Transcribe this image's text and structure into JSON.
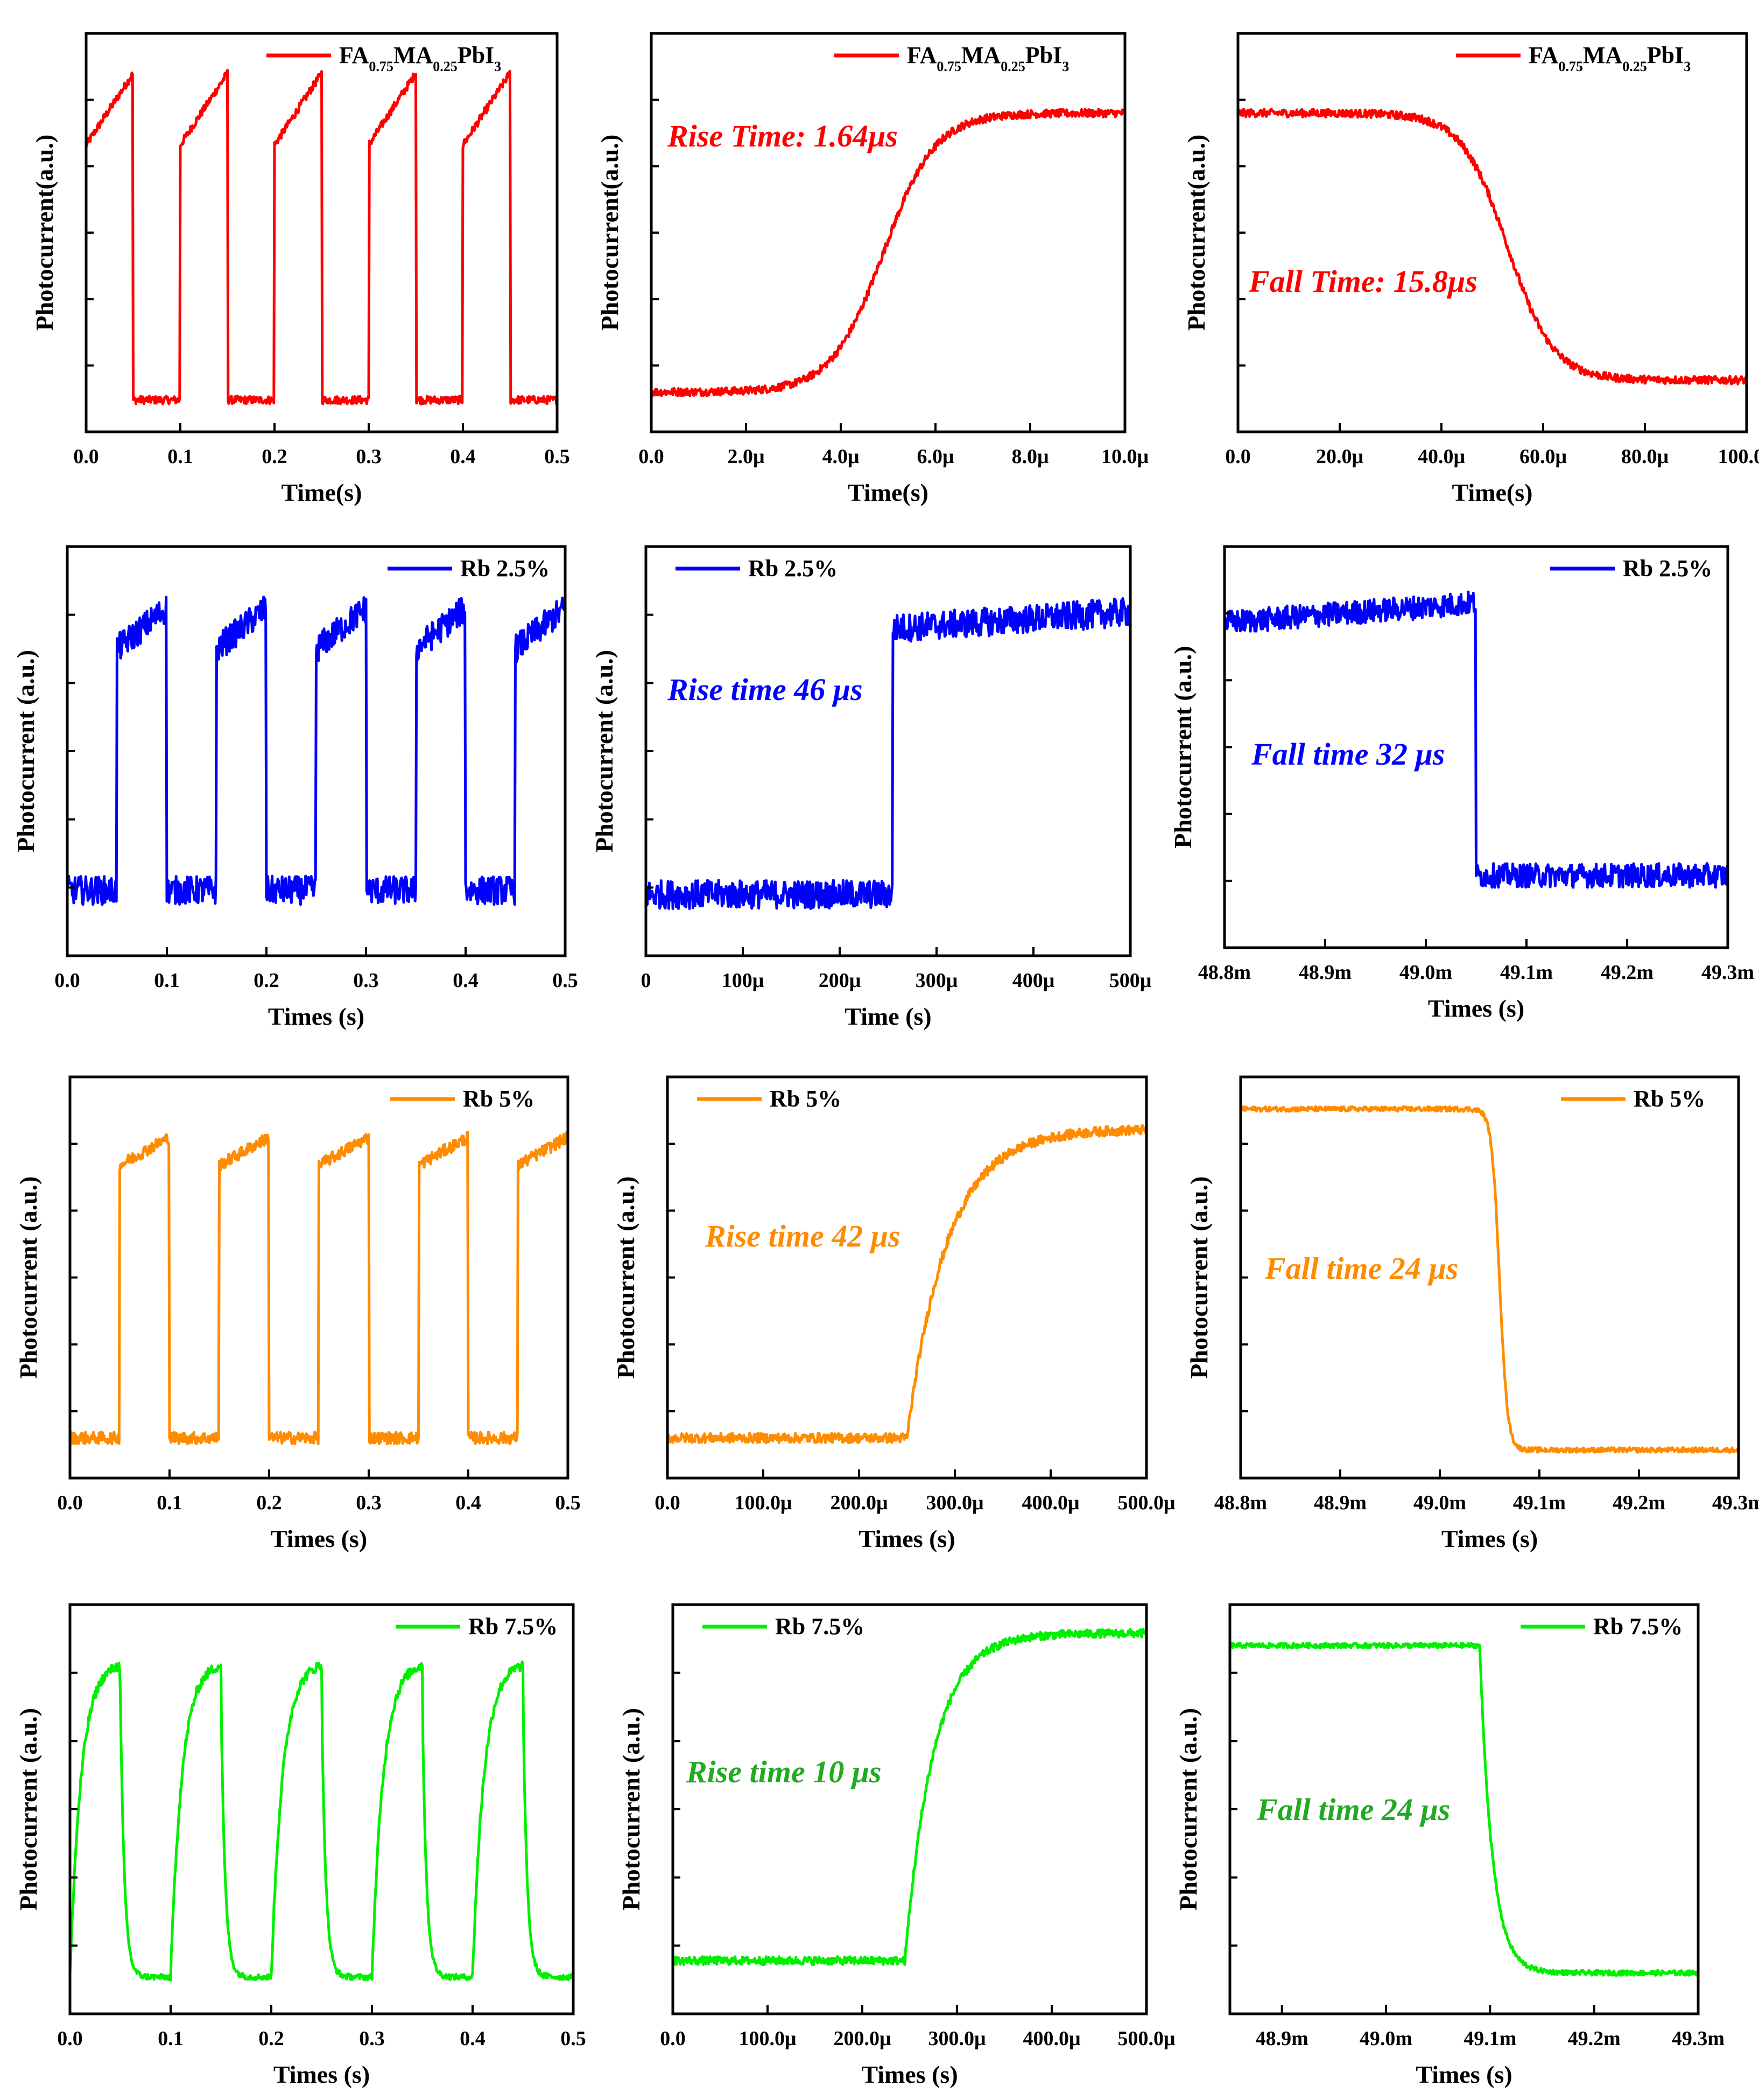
{
  "figure": {
    "description_free": true
  },
  "chart_data": [
    {
      "id": "p1",
      "type": "line",
      "style": "square",
      "color": "#ff0000",
      "legend": "FA0.75MA0.25PbI3",
      "legend_parts": [
        "FA",
        "0.75",
        "MA",
        "0.25",
        "PbI",
        "3"
      ],
      "xlabel": "Time(s)",
      "ylabel": "Photocurrent(a.u.)",
      "xlim": [
        0,
        0.5
      ],
      "ylim": [
        0,
        1
      ],
      "xticks": [
        "0.0",
        "0.1",
        "0.2",
        "0.3",
        "0.4",
        "0.5"
      ],
      "pulse_period": 0.1,
      "on_start": 0.0,
      "on_duration": 0.05,
      "first_on": 0.0,
      "low": 0.08,
      "high": [
        0.72,
        0.9
      ],
      "annotation": ""
    },
    {
      "id": "p2",
      "type": "line",
      "style": "sigmoid",
      "color": "#ff0000",
      "legend": "FA0.75MA0.25PbI3",
      "legend_parts": [
        "FA",
        "0.75",
        "MA",
        "0.25",
        "PbI",
        "3"
      ],
      "xlabel": "Time(s)",
      "ylabel": "Photocurrent(a.u.)",
      "xlim": [
        0,
        10
      ],
      "ylim": [
        0,
        1
      ],
      "xticks": [
        "0.0",
        "2.0μ",
        "4.0μ",
        "6.0μ",
        "8.0μ",
        "10.0μ"
      ],
      "transition_center": 4.9,
      "transition_width": 0.55,
      "low": 0.1,
      "high": 0.8,
      "annotation": "Rise Time: 1.64μs",
      "annotation_color": "#ff0000"
    },
    {
      "id": "p3",
      "type": "line",
      "style": "sigmoid",
      "color": "#ff0000",
      "legend": "FA0.75MA0.25PbI3",
      "legend_parts": [
        "FA",
        "0.75",
        "MA",
        "0.25",
        "PbI",
        "3"
      ],
      "xlabel": "Time(s)",
      "ylabel": "Photocurrent(a.u.)",
      "xlim": [
        0,
        100
      ],
      "ylim": [
        0,
        1
      ],
      "xticks": [
        "0.0",
        "20.0μ",
        "40.0μ",
        "60.0μ",
        "80.0μ",
        "100.0μ"
      ],
      "transition_center": 53,
      "transition_width": 4.5,
      "low": 0.13,
      "high": 0.8,
      "falling": true,
      "annotation": "Fall Time: 15.8μs",
      "annotation_color": "#ff0000"
    },
    {
      "id": "p4",
      "type": "line",
      "style": "square",
      "color": "#0000ff",
      "legend": "Rb 2.5%",
      "xlabel": "Times (s)",
      "ylabel": "Photocurrent (a.u.)",
      "xlim": [
        0,
        0.5
      ],
      "ylim": [
        0,
        1
      ],
      "xticks": [
        "0.0",
        "0.1",
        "0.2",
        "0.3",
        "0.4",
        "0.5"
      ],
      "pulse_period": 0.1,
      "on_start": 0.05,
      "on_duration": 0.05,
      "first_on": 0.05,
      "low": 0.16,
      "high": [
        0.75,
        0.85
      ],
      "noise": 0.035,
      "annotation": ""
    },
    {
      "id": "p5",
      "type": "line",
      "style": "step",
      "color": "#0000ff",
      "legend": "Rb 2.5%",
      "xlabel": "Time (s)",
      "ylabel": "Photocurrent (a.u.)",
      "xlim": [
        0,
        500
      ],
      "ylim": [
        0,
        1
      ],
      "xticks": [
        "0",
        "100μ",
        "200μ",
        "300μ",
        "400μ",
        "500μ"
      ],
      "transition_center": 255,
      "low": 0.15,
      "high": 0.8,
      "noise": 0.035,
      "annotation": "Rise time 46 μs",
      "annotation_color": "#0000ff"
    },
    {
      "id": "p6",
      "type": "line",
      "style": "step",
      "color": "#0000ff",
      "legend": "Rb 2.5%",
      "xlabel": "Times (s)",
      "ylabel": "Photocurrent (a.u.)",
      "xlim": [
        48.8,
        49.3
      ],
      "ylim": [
        0,
        1
      ],
      "xticks": [
        "48.8m",
        "48.9m",
        "49.0m",
        "49.1m",
        "49.2m",
        "49.3m"
      ],
      "transition_center": 49.05,
      "low": 0.18,
      "high": 0.85,
      "falling": true,
      "noise": 0.03,
      "annotation": "Fall time 32 μs",
      "annotation_color": "#0000ff"
    },
    {
      "id": "p7",
      "type": "line",
      "style": "square",
      "color": "#ff8c00",
      "legend": "Rb 5%",
      "xlabel": "Times (s)",
      "ylabel": "Photocurrent (a.u.)",
      "xlim": [
        0,
        0.5
      ],
      "ylim": [
        0,
        1
      ],
      "xticks": [
        "0.0",
        "0.1",
        "0.2",
        "0.3",
        "0.4",
        "0.5"
      ],
      "pulse_period": 0.1,
      "on_start": 0.05,
      "on_duration": 0.05,
      "first_on": 0.05,
      "low": 0.1,
      "high": [
        0.78,
        0.85
      ],
      "noise": 0.015,
      "annotation": ""
    },
    {
      "id": "p8",
      "type": "line",
      "style": "expRise",
      "color": "#ff8c00",
      "legend": "Rb 5%",
      "xlabel": "Times (s)",
      "ylabel": "Photocurrent (a.u.)",
      "xlim": [
        0,
        500
      ],
      "ylim": [
        0,
        1
      ],
      "xticks": [
        "0.0",
        "100.0μ",
        "200.0μ",
        "300.0μ",
        "400.0μ",
        "500.0μ"
      ],
      "transition_center": 250,
      "tau": 42,
      "low": 0.1,
      "high": 0.87,
      "noise": 0.012,
      "annotation": "Rise time 42 μs",
      "annotation_color": "#ff8c00"
    },
    {
      "id": "p9",
      "type": "line",
      "style": "sigmoid",
      "color": "#ff8c00",
      "legend": "Rb 5%",
      "xlabel": "Times (s)",
      "ylabel": "Photocurrent (a.u.)",
      "xlim": [
        48.8,
        49.3
      ],
      "ylim": [
        0,
        1
      ],
      "xticks": [
        "48.8m",
        "48.9m",
        "49.0m",
        "49.1m",
        "49.2m",
        "49.3m"
      ],
      "transition_center": 49.06,
      "transition_width": 0.004,
      "low": 0.07,
      "high": 0.92,
      "falling": true,
      "noise": 0.006,
      "annotation": "Fall time 24 μs",
      "annotation_color": "#ff8c00"
    },
    {
      "id": "p10",
      "type": "line",
      "style": "squareExp",
      "color": "#00ee00",
      "legend": "Rb 7.5%",
      "xlabel": "Times (s)",
      "ylabel": "Photocurrent (a.u.)",
      "xlim": [
        0,
        0.5
      ],
      "ylim": [
        0,
        1
      ],
      "xticks": [
        "0.0",
        "0.1",
        "0.2",
        "0.3",
        "0.4",
        "0.5"
      ],
      "pulse_period": 0.1,
      "on_start": 0.0,
      "on_duration": 0.05,
      "first_on": 0.0,
      "low": 0.09,
      "high": [
        0.8,
        0.86
      ],
      "noise": 0.012,
      "annotation": ""
    },
    {
      "id": "p11",
      "type": "line",
      "style": "expRise",
      "color": "#00ee00",
      "legend": "Rb 7.5%",
      "xlabel": "Times (s)",
      "ylabel": "Photocurrent (a.u.)",
      "xlim": [
        0,
        500
      ],
      "ylim": [
        0,
        1
      ],
      "xticks": [
        "0.0",
        "100.0μ",
        "200.0μ",
        "300.0μ",
        "400.0μ",
        "500.0μ"
      ],
      "transition_center": 245,
      "tau": 30,
      "low": 0.13,
      "high": 0.93,
      "noise": 0.01,
      "annotation": "Rise time 10 μs",
      "annotation_color": "#22aa22"
    },
    {
      "id": "p12",
      "type": "line",
      "style": "expFall",
      "color": "#00ee00",
      "legend": "Rb 7.5%",
      "xlabel": "Times (s)",
      "ylabel": "Photocurrent (a.u.)",
      "xlim": [
        48.85,
        49.3
      ],
      "ylim": [
        0,
        1
      ],
      "xticks": [
        "48.9m",
        "49.0m",
        "49.1m",
        "49.2m",
        "49.3m"
      ],
      "xtick_values": [
        48.9,
        49.0,
        49.1,
        49.2,
        49.3
      ],
      "transition_center": 49.09,
      "tau": 0.012,
      "low": 0.1,
      "high": 0.9,
      "falling": true,
      "noise": 0.006,
      "annotation": "Fall time 24 μs",
      "annotation_color": "#22aa22"
    }
  ]
}
